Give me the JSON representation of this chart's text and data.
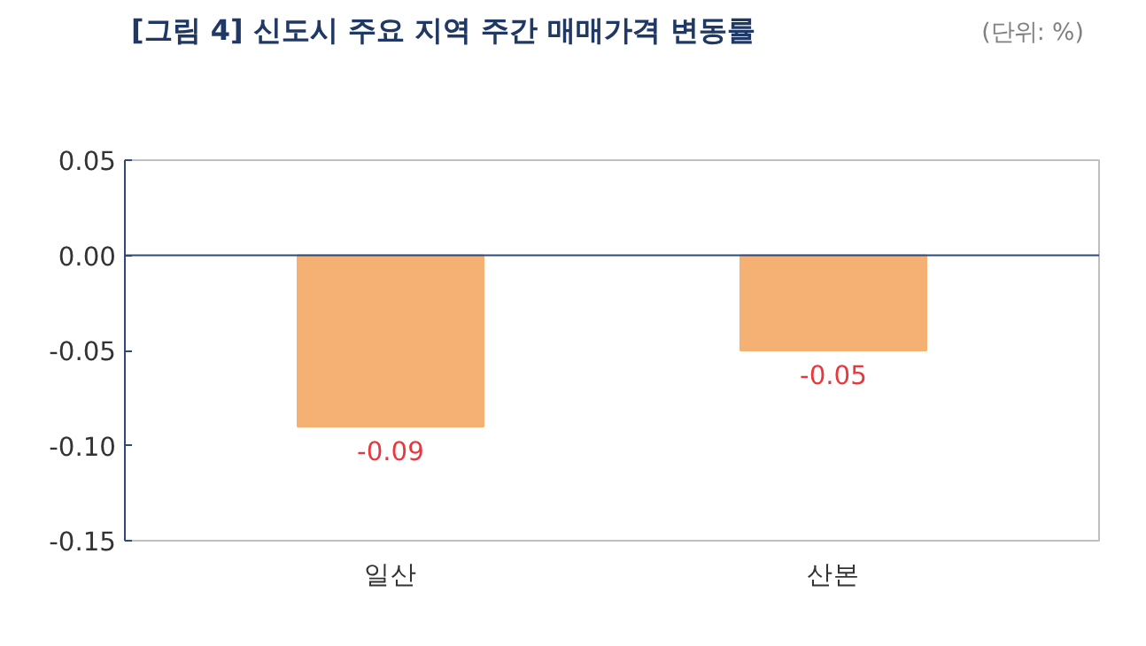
{
  "chart_data": {
    "type": "bar",
    "title": "[그림 4] 신도시 주요 지역 주간 매매가격 변동률",
    "annotations": [
      "(단위: %)"
    ],
    "categories": [
      "일산",
      "산본"
    ],
    "values": [
      -0.09,
      -0.05
    ],
    "color": "#f4b173",
    "data_labels": true,
    "ylim": [
      -0.15,
      0.05
    ],
    "yticks": [
      0.05,
      {
        "value": 0,
        "label": "0.00"
      },
      -0.05,
      {
        "value": -0.1,
        "label": "-0.10"
      },
      -0.15
    ],
    "grid": false,
    "ref_lines": [
      {
        "axis": "y",
        "value": 0,
        "color": "#2f4a7a"
      }
    ]
  }
}
